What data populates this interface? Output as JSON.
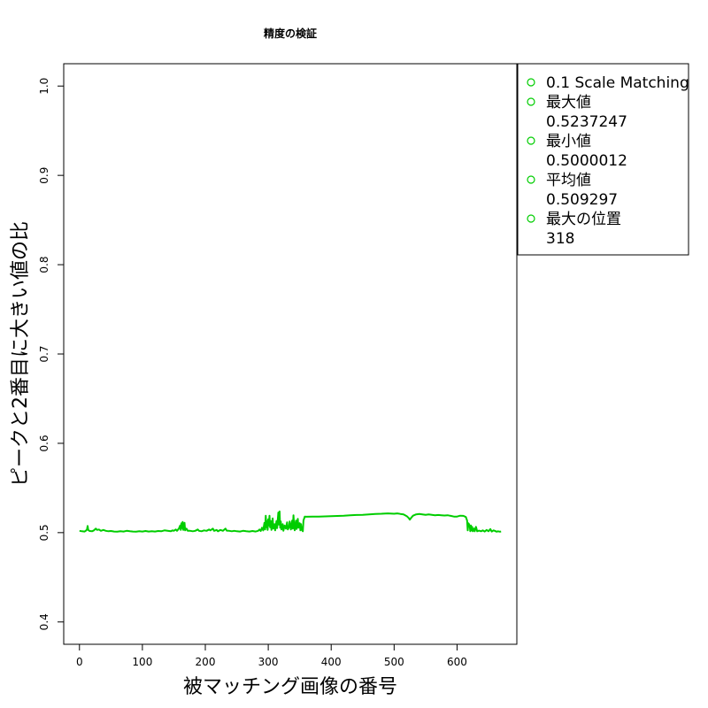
{
  "chart_data": {
    "type": "line",
    "title": "精度の検証",
    "xlabel": "被マッチング画像の番号",
    "ylabel": "ピークと2番目に大きい値の比",
    "xlim": [
      -25,
      695
    ],
    "ylim": [
      0.375,
      1.025
    ],
    "x_ticks": [
      0,
      100,
      200,
      300,
      400,
      500,
      600
    ],
    "y_ticks": [
      0.4,
      0.5,
      0.6,
      0.7,
      0.8,
      0.9,
      1.0
    ],
    "grid": false,
    "legend_position": "outside-top-right",
    "series": [
      {
        "name": "0.1 Scale Matching",
        "color": "#00cd00",
        "points": [
          [
            0,
            0.502
          ],
          [
            4,
            0.5015
          ],
          [
            8,
            0.5012
          ],
          [
            10,
            0.502
          ],
          [
            12,
            0.5035
          ],
          [
            13,
            0.5075
          ],
          [
            14,
            0.503
          ],
          [
            16,
            0.5018
          ],
          [
            20,
            0.5015
          ],
          [
            23,
            0.5025
          ],
          [
            26,
            0.5045
          ],
          [
            28,
            0.503
          ],
          [
            31,
            0.5035
          ],
          [
            34,
            0.502
          ],
          [
            38,
            0.503
          ],
          [
            42,
            0.502
          ],
          [
            46,
            0.5015
          ],
          [
            50,
            0.5018
          ],
          [
            55,
            0.5012
          ],
          [
            60,
            0.501
          ],
          [
            65,
            0.5015
          ],
          [
            70,
            0.5012
          ],
          [
            75,
            0.502
          ],
          [
            80,
            0.5015
          ],
          [
            85,
            0.5012
          ],
          [
            90,
            0.501
          ],
          [
            95,
            0.5015
          ],
          [
            100,
            0.5012
          ],
          [
            105,
            0.5018
          ],
          [
            110,
            0.5012
          ],
          [
            115,
            0.5015
          ],
          [
            120,
            0.5012
          ],
          [
            125,
            0.5018
          ],
          [
            130,
            0.5015
          ],
          [
            135,
            0.5025
          ],
          [
            140,
            0.502
          ],
          [
            145,
            0.5015
          ],
          [
            148,
            0.5025
          ],
          [
            150,
            0.502
          ],
          [
            153,
            0.5035
          ],
          [
            155,
            0.502
          ],
          [
            158,
            0.5045
          ],
          [
            160,
            0.508
          ],
          [
            161,
            0.503
          ],
          [
            162,
            0.5105
          ],
          [
            163,
            0.505
          ],
          [
            164,
            0.512
          ],
          [
            165,
            0.503
          ],
          [
            167,
            0.511
          ],
          [
            168,
            0.5025
          ],
          [
            170,
            0.5045
          ],
          [
            172,
            0.502
          ],
          [
            176,
            0.502
          ],
          [
            180,
            0.5015
          ],
          [
            184,
            0.502
          ],
          [
            188,
            0.5035
          ],
          [
            190,
            0.502
          ],
          [
            194,
            0.5015
          ],
          [
            198,
            0.5025
          ],
          [
            202,
            0.502
          ],
          [
            206,
            0.5035
          ],
          [
            208,
            0.5025
          ],
          [
            212,
            0.5045
          ],
          [
            214,
            0.502
          ],
          [
            218,
            0.503
          ],
          [
            220,
            0.5015
          ],
          [
            224,
            0.503
          ],
          [
            228,
            0.502
          ],
          [
            232,
            0.5045
          ],
          [
            234,
            0.5022
          ],
          [
            238,
            0.502
          ],
          [
            242,
            0.5015
          ],
          [
            246,
            0.502
          ],
          [
            250,
            0.5015
          ],
          [
            255,
            0.5012
          ],
          [
            260,
            0.502
          ],
          [
            265,
            0.5015
          ],
          [
            270,
            0.5012
          ],
          [
            275,
            0.5018
          ],
          [
            280,
            0.5012
          ],
          [
            284,
            0.502
          ],
          [
            286,
            0.5035
          ],
          [
            288,
            0.5018
          ],
          [
            290,
            0.5055
          ],
          [
            292,
            0.5025
          ],
          [
            294,
            0.511
          ],
          [
            295,
            0.5035
          ],
          [
            296,
            0.519
          ],
          [
            297,
            0.506
          ],
          [
            298,
            0.513
          ],
          [
            299,
            0.503
          ],
          [
            300,
            0.515
          ],
          [
            301,
            0.508
          ],
          [
            302,
            0.519
          ],
          [
            303,
            0.506
          ],
          [
            304,
            0.513
          ],
          [
            305,
            0.503
          ],
          [
            307,
            0.516
          ],
          [
            308,
            0.5045
          ],
          [
            310,
            0.5095
          ],
          [
            311,
            0.5025
          ],
          [
            313,
            0.513
          ],
          [
            314,
            0.505
          ],
          [
            316,
            0.5225
          ],
          [
            317,
            0.509
          ],
          [
            318,
            0.5237
          ],
          [
            319,
            0.5055
          ],
          [
            320,
            0.5125
          ],
          [
            321,
            0.5035
          ],
          [
            323,
            0.5095
          ],
          [
            324,
            0.502
          ],
          [
            326,
            0.508
          ],
          [
            328,
            0.5045
          ],
          [
            330,
            0.5115
          ],
          [
            331,
            0.5035
          ],
          [
            333,
            0.506
          ],
          [
            334,
            0.5125
          ],
          [
            336,
            0.5035
          ],
          [
            338,
            0.5135
          ],
          [
            339,
            0.5045
          ],
          [
            340,
            0.5195
          ],
          [
            341,
            0.5085
          ],
          [
            342,
            0.5025
          ],
          [
            344,
            0.5135
          ],
          [
            345,
            0.504
          ],
          [
            347,
            0.5155
          ],
          [
            348,
            0.5055
          ],
          [
            350,
            0.5105
          ],
          [
            351,
            0.5025
          ],
          [
            352,
            0.5095
          ],
          [
            353,
            0.5035
          ],
          [
            355,
            0.5015
          ],
          [
            356,
            0.5135
          ],
          [
            358,
            0.518
          ],
          [
            360,
            0.5178
          ],
          [
            370,
            0.518
          ],
          [
            380,
            0.518
          ],
          [
            390,
            0.5182
          ],
          [
            400,
            0.5185
          ],
          [
            410,
            0.5187
          ],
          [
            420,
            0.519
          ],
          [
            430,
            0.5195
          ],
          [
            440,
            0.5198
          ],
          [
            450,
            0.52
          ],
          [
            460,
            0.5205
          ],
          [
            470,
            0.521
          ],
          [
            480,
            0.5212
          ],
          [
            490,
            0.5215
          ],
          [
            500,
            0.5212
          ],
          [
            505,
            0.5215
          ],
          [
            510,
            0.521
          ],
          [
            515,
            0.5205
          ],
          [
            520,
            0.5185
          ],
          [
            523,
            0.5165
          ],
          [
            525,
            0.5145
          ],
          [
            527,
            0.5165
          ],
          [
            530,
            0.519
          ],
          [
            535,
            0.5205
          ],
          [
            540,
            0.521
          ],
          [
            545,
            0.5205
          ],
          [
            550,
            0.52
          ],
          [
            555,
            0.5205
          ],
          [
            560,
            0.52
          ],
          [
            565,
            0.5195
          ],
          [
            570,
            0.5198
          ],
          [
            575,
            0.5195
          ],
          [
            580,
            0.5192
          ],
          [
            585,
            0.5195
          ],
          [
            590,
            0.5188
          ],
          [
            595,
            0.518
          ],
          [
            600,
            0.518
          ],
          [
            605,
            0.519
          ],
          [
            610,
            0.5188
          ],
          [
            614,
            0.5175
          ],
          [
            616,
            0.5135
          ],
          [
            617,
            0.5025
          ],
          [
            618,
            0.5105
          ],
          [
            619,
            0.5095
          ],
          [
            620,
            0.5075
          ],
          [
            621,
            0.5015
          ],
          [
            622,
            0.508
          ],
          [
            623,
            0.5025
          ],
          [
            624,
            0.5065
          ],
          [
            625,
            0.5015
          ],
          [
            627,
            0.5045
          ],
          [
            628,
            0.5015
          ],
          [
            630,
            0.5065
          ],
          [
            632,
            0.5015
          ],
          [
            635,
            0.5022
          ],
          [
            638,
            0.5015
          ],
          [
            641,
            0.5025
          ],
          [
            644,
            0.5012
          ],
          [
            647,
            0.503
          ],
          [
            650,
            0.5015
          ],
          [
            653,
            0.504
          ],
          [
            655,
            0.5012
          ],
          [
            658,
            0.5025
          ],
          [
            660,
            0.502
          ],
          [
            663,
            0.501
          ],
          [
            665,
            0.5015
          ],
          [
            668,
            0.501
          ],
          [
            670,
            0.5012
          ]
        ]
      }
    ],
    "legend": [
      {
        "symbol": "circle-open",
        "color": "#00cd00",
        "lines": [
          "0.1 Scale Matching"
        ]
      },
      {
        "symbol": "circle-open",
        "color": "#00cd00",
        "lines": [
          "最大値",
          "0.5237247"
        ]
      },
      {
        "symbol": "circle-open",
        "color": "#00cd00",
        "lines": [
          "最小値",
          "0.5000012"
        ]
      },
      {
        "symbol": "circle-open",
        "color": "#00cd00",
        "lines": [
          "平均値",
          "0.509297"
        ]
      },
      {
        "symbol": "circle-open",
        "color": "#00cd00",
        "lines": [
          "最大の位置",
          "318"
        ]
      }
    ]
  }
}
